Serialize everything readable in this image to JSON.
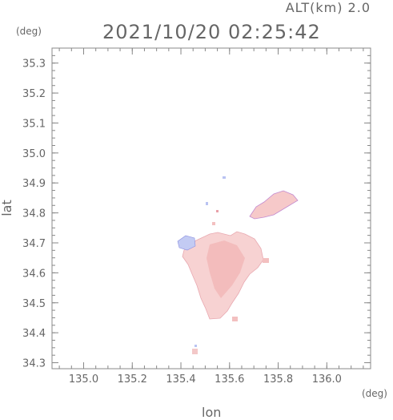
{
  "header": {
    "altitude": "ALT(km) 2.0",
    "timestamp": "2021/10/20 02:25:42"
  },
  "axes": {
    "lat_unit": "(deg)",
    "lon_unit": "(deg)",
    "ylabel": "lat",
    "xlabel": "lon"
  },
  "chart_data": {
    "type": "heatmap",
    "xlabel": "lon",
    "ylabel": "lat",
    "xlim": [
      134.87,
      136.18
    ],
    "ylim": [
      34.28,
      35.35
    ],
    "x_ticks": [
      "135.0",
      "135.2",
      "135.4",
      "135.6",
      "135.8",
      "136.0"
    ],
    "y_ticks": [
      "35.3",
      "35.2",
      "35.1",
      "35.0",
      "34.9",
      "34.8",
      "34.7",
      "34.6",
      "34.5",
      "34.4",
      "34.3"
    ],
    "colors": {
      "positive": "#f6c9c9",
      "negative": "#b9c3f2",
      "edge": "#6a6ad8"
    }
  }
}
